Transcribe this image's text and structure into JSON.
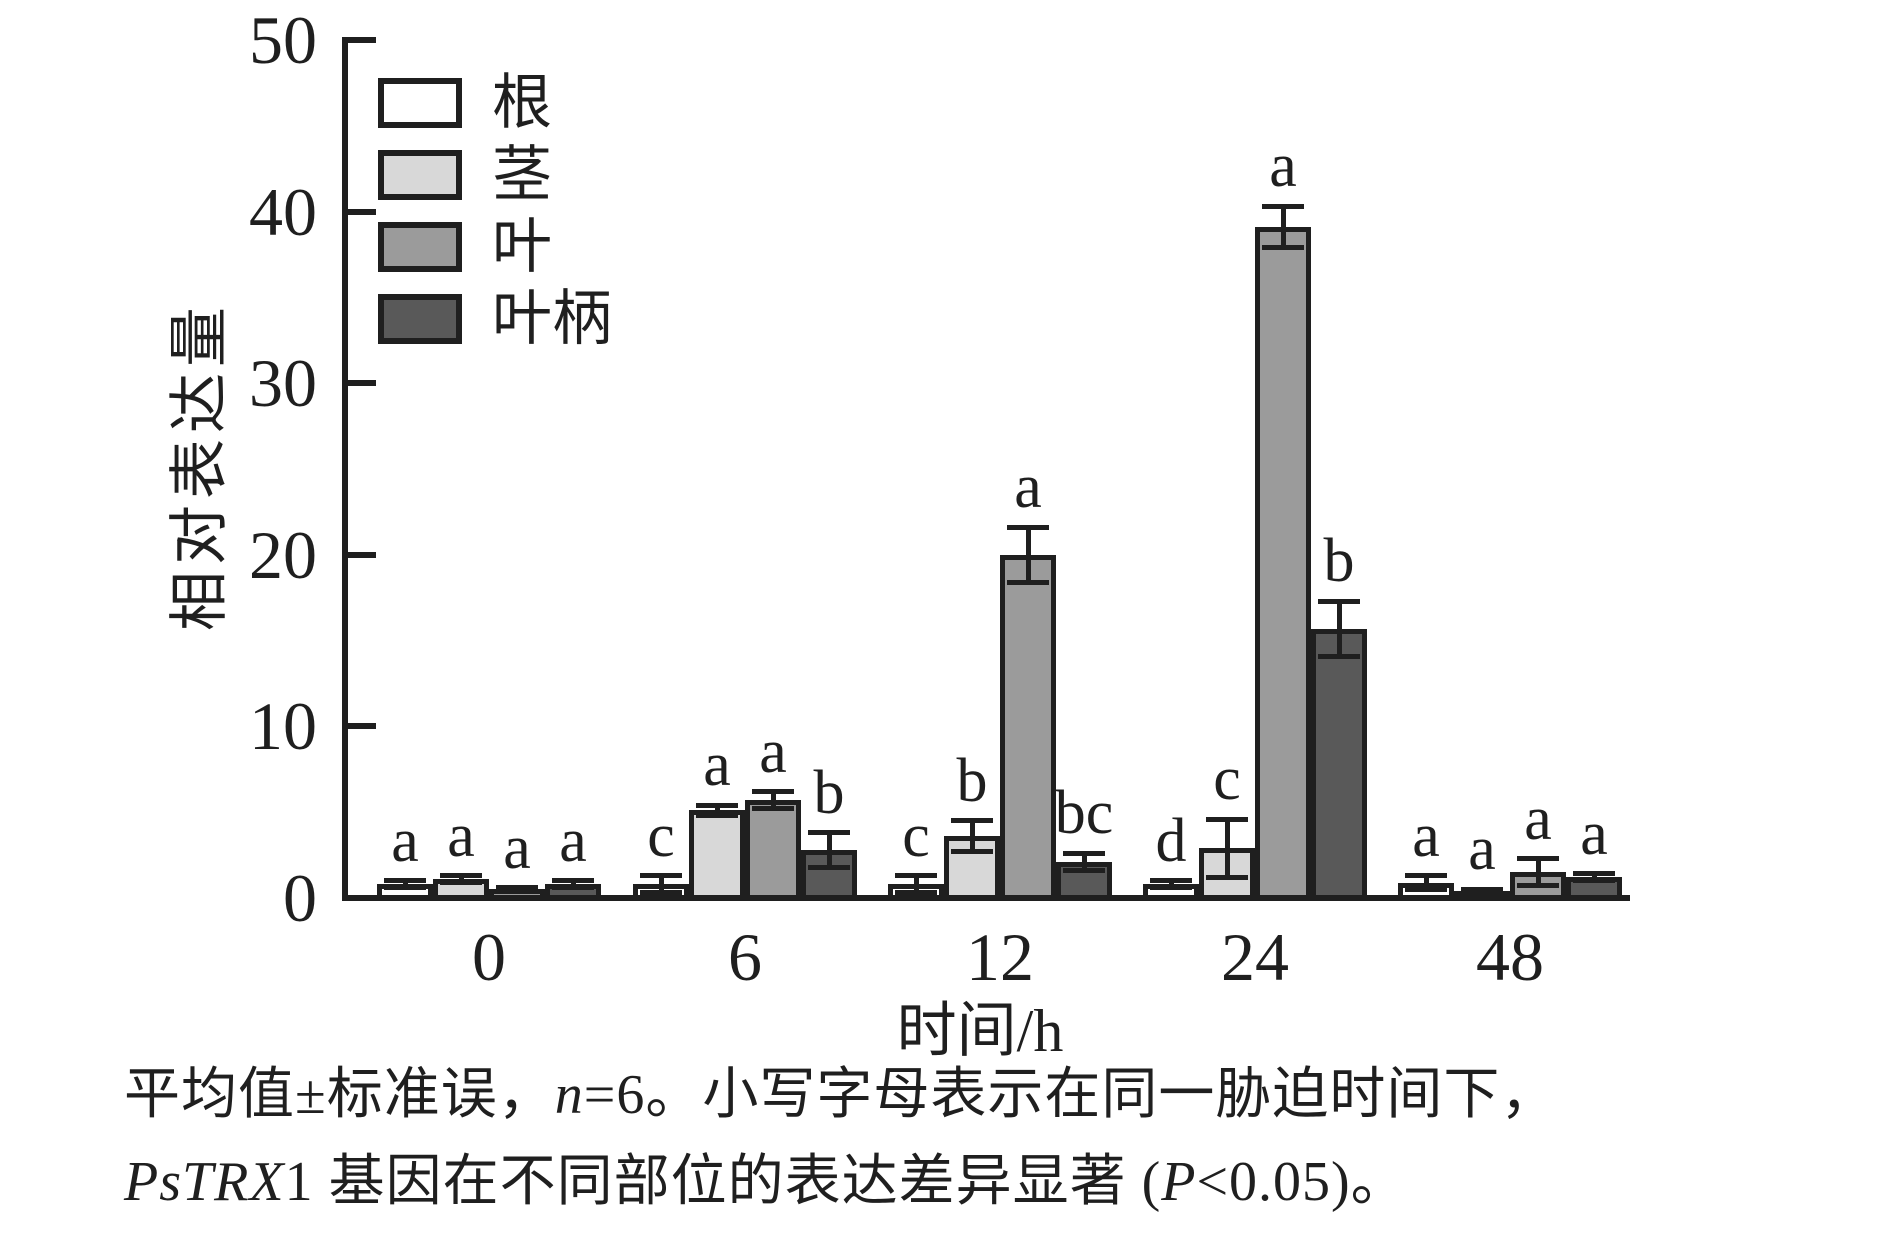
{
  "chart_data": {
    "type": "bar",
    "title": "",
    "xlabel": "时间/h",
    "ylabel": "相对表达量",
    "ylim": [
      0,
      50
    ],
    "yticks": [
      0,
      10,
      20,
      30,
      40,
      50
    ],
    "grid": false,
    "legend_position": "upper-left-inside",
    "error_bars": "standard error (±SE)",
    "categories": [
      "0",
      "6",
      "12",
      "24",
      "48"
    ],
    "series": [
      {
        "key": "root",
        "name": "根",
        "color": "#ffffff",
        "values": [
          0.8,
          0.8,
          0.8,
          0.8,
          0.9
        ],
        "errors": [
          0.2,
          0.5,
          0.5,
          0.2,
          0.4
        ],
        "letters": [
          "a",
          "c",
          "c",
          "d",
          "a"
        ]
      },
      {
        "key": "stem",
        "name": "茎",
        "color": "#d8d8d8",
        "values": [
          1.1,
          5.1,
          3.6,
          2.9,
          0.4
        ],
        "errors": [
          0.2,
          0.3,
          0.9,
          1.7,
          0.1
        ],
        "letters": [
          "a",
          "a",
          "b",
          "c",
          "a"
        ]
      },
      {
        "key": "leaf",
        "name": "叶",
        "color": "#9b9b9b",
        "values": [
          0.5,
          5.7,
          20.0,
          39.1,
          1.5
        ],
        "errors": [
          0.1,
          0.5,
          1.6,
          1.2,
          0.8
        ],
        "letters": [
          "a",
          "a",
          "a",
          "a",
          "a"
        ]
      },
      {
        "key": "petiole",
        "name": "叶柄",
        "color": "#595959",
        "values": [
          0.8,
          2.8,
          2.1,
          15.7,
          1.2
        ],
        "errors": [
          0.2,
          1.0,
          0.5,
          1.6,
          0.2
        ],
        "letters": [
          "a",
          "b",
          "bc",
          "b",
          "a"
        ]
      }
    ]
  },
  "legend": {
    "items": [
      {
        "key": "root",
        "label": "根",
        "color": "#ffffff"
      },
      {
        "key": "stem",
        "label": "茎",
        "color": "#d8d8d8"
      },
      {
        "key": "leaf",
        "label": "叶",
        "color": "#9b9b9b"
      },
      {
        "key": "petiole",
        "label": "叶柄",
        "color": "#595959"
      }
    ]
  },
  "caption": {
    "line1_segments": [
      {
        "text": "平均值±标准误，",
        "italic": false
      },
      {
        "text": "n",
        "italic": true
      },
      {
        "text": "=6。小写字母表示在同一胁迫时间下，",
        "italic": false
      }
    ],
    "line2_segments": [
      {
        "text": "PsTRX",
        "italic": true
      },
      {
        "text": "1 基因在不同部位的表达差异显著 (",
        "italic": false
      },
      {
        "text": "P",
        "italic": true
      },
      {
        "text": "<0.05)。",
        "italic": false
      }
    ]
  },
  "colors": {
    "axis": "#1f1f1f",
    "text": "#1f1f1f",
    "background": "#ffffff"
  }
}
